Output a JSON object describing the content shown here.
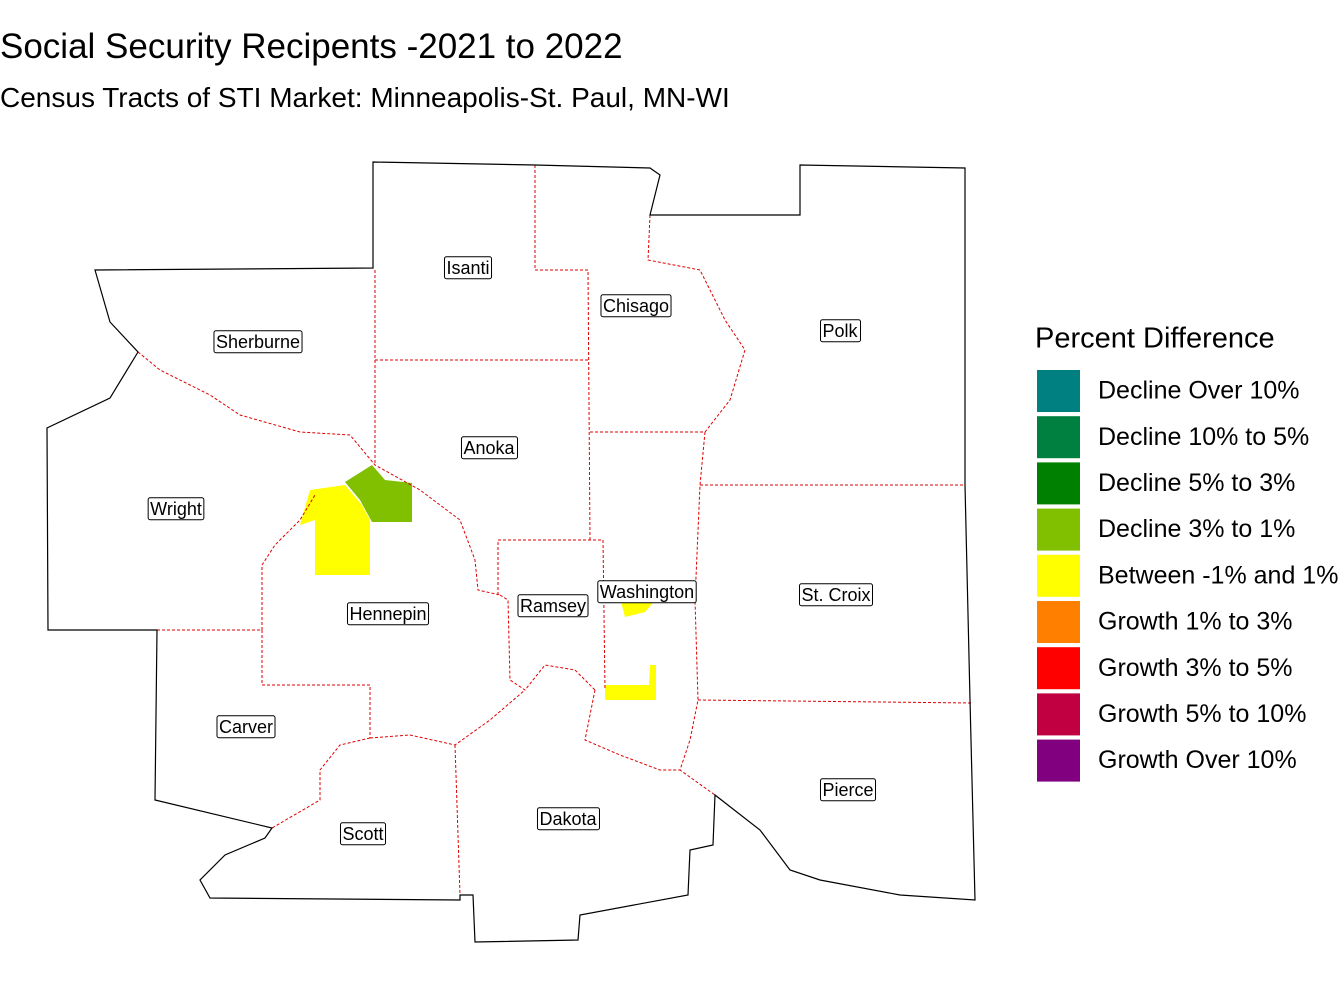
{
  "title": "Social Security Recipents -2021 to 2022",
  "subtitle": "Census Tracts of STI Market: Minneapolis-St. Paul, MN-WI",
  "legend": {
    "title": "Percent Difference",
    "items": [
      {
        "label": "Decline Over 10%",
        "color": "#008080"
      },
      {
        "label": "Decline 10% to 5%",
        "color": "#008040"
      },
      {
        "label": "Decline 5% to 3%",
        "color": "#008000"
      },
      {
        "label": "Decline 3% to 1%",
        "color": "#80c000"
      },
      {
        "label": "Between -1% and 1%",
        "color": "#ffff00"
      },
      {
        "label": "Growth 1% to 3%",
        "color": "#ff8000"
      },
      {
        "label": "Growth 3% to 5%",
        "color": "#ff0000"
      },
      {
        "label": "Growth 5% to 10%",
        "color": "#c00040"
      },
      {
        "label": "Growth Over 10%",
        "color": "#800080"
      }
    ]
  },
  "counties": [
    "Isanti",
    "Chisago",
    "Sherburne",
    "Polk",
    "Anoka",
    "Wright",
    "Hennepin",
    "Ramsey",
    "Washington",
    "St. Croix",
    "Carver",
    "Scott",
    "Dakota",
    "Pierce"
  ]
}
